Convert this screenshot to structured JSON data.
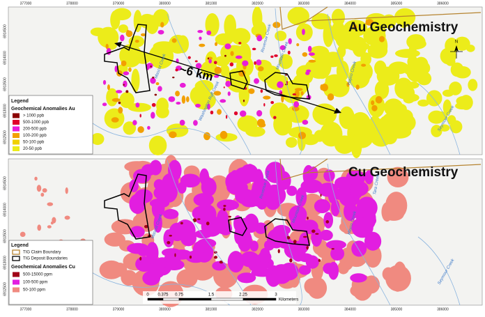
{
  "x_labels": [
    "377000",
    "378000",
    "379000",
    "380000",
    "381000",
    "382000",
    "383000",
    "384000",
    "385000",
    "386000"
  ],
  "y_labels": [
    "6914500",
    "6914000",
    "6913500",
    "6913000",
    "6912500"
  ],
  "top_panel": {
    "title": "Au Geochemistry",
    "distance_label": "~6 km",
    "creeks": [
      "Mascot Creek",
      "Revenue Creek",
      "Mountain Creek",
      "Hayco Creek",
      "Seymour Creek",
      "Washington Ruff Creek"
    ],
    "legend": {
      "title": "Legend",
      "heading": "Geochemical Anomalies Au",
      "items": [
        {
          "label": "> 1000 ppb",
          "color": "#8b0000"
        },
        {
          "label": "500-1000 ppb",
          "color": "#e0002a"
        },
        {
          "label": "200-500 ppb",
          "color": "#e81ed8"
        },
        {
          "label": "100-200 ppb",
          "color": "#f2a000"
        },
        {
          "label": "50-100 ppb",
          "color": "#f0d000"
        },
        {
          "label": "20-50 ppb",
          "color": "#ecec1a"
        }
      ]
    }
  },
  "bottom_panel": {
    "title": "Cu Geochemistry",
    "creeks": [
      "Mascot Creek",
      "Revenue Creek",
      "Mountain Creek",
      "Hayco Creek",
      "Tara Creek",
      "Seymour Creek"
    ],
    "legend": {
      "title": "Legend",
      "boundaries": [
        {
          "label": "TIG Claim Boundary",
          "color": "#b5832f"
        },
        {
          "label": "TIG Deposit Boundaries",
          "color": "#000000"
        }
      ],
      "heading": "Geochemical Anomalies Cu",
      "items": [
        {
          "label": "500-15000 ppm",
          "color": "#a00018"
        },
        {
          "label": "100-500 ppm",
          "color": "#e21ee0"
        },
        {
          "label": "50-100 ppm",
          "color": "#f08a80"
        }
      ]
    }
  },
  "scale_bar": {
    "labels": [
      "0",
      "0.375",
      "0.75",
      "1.5",
      "2.25",
      "3"
    ],
    "unit": "Kilometers"
  },
  "north": "N"
}
